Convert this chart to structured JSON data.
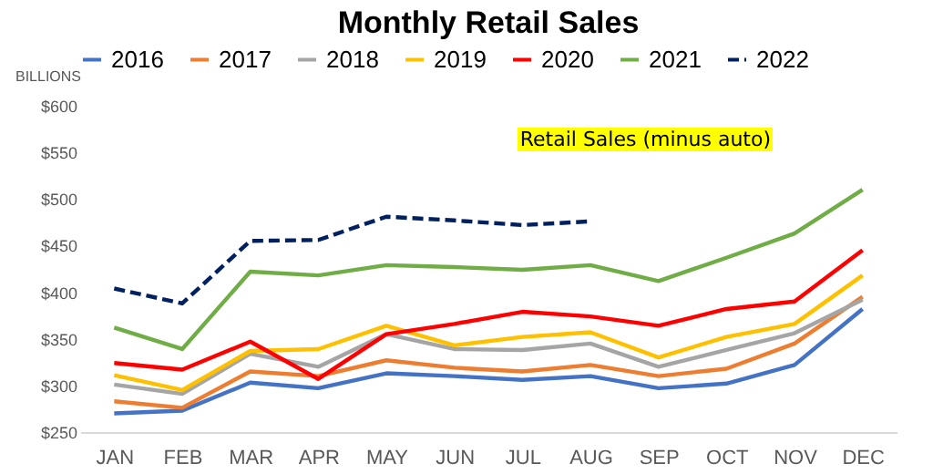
{
  "chart_data": {
    "type": "line",
    "title": "Monthly Retail Sales",
    "ylabel": "BILLIONS",
    "annotations": [
      "Retail Sales (minus auto)"
    ],
    "categories": [
      "JAN",
      "FEB",
      "MAR",
      "APR",
      "MAY",
      "JUN",
      "JUL",
      "AUG",
      "SEP",
      "OCT",
      "NOV",
      "DEC"
    ],
    "ylim": [
      250,
      600
    ],
    "yticks": [
      {
        "value": 250,
        "label": "$250"
      },
      {
        "value": 300,
        "label": "$300"
      },
      {
        "value": 350,
        "label": "$350"
      },
      {
        "value": 400,
        "label": "$400"
      },
      {
        "value": 450,
        "label": "$450"
      },
      {
        "value": 500,
        "label": "$500"
      },
      {
        "value": 550,
        "label": "$550"
      },
      {
        "value": 600,
        "label": "$600"
      }
    ],
    "grid": false,
    "legend": "top",
    "marker": "none",
    "series": [
      {
        "name": "2016",
        "color": "#4472c4",
        "values": [
          270,
          273,
          303,
          297,
          313,
          310,
          306,
          310,
          297,
          302,
          322,
          382
        ]
      },
      {
        "name": "2017",
        "color": "#ed7d31",
        "values": [
          283,
          276,
          315,
          310,
          327,
          319,
          315,
          322,
          310,
          318,
          345,
          395
        ]
      },
      {
        "name": "2018",
        "color": "#a5a5a5",
        "values": [
          301,
          291,
          334,
          320,
          355,
          339,
          338,
          345,
          320,
          338,
          356,
          392
        ]
      },
      {
        "name": "2019",
        "color": "#ffc000",
        "values": [
          311,
          295,
          337,
          339,
          364,
          343,
          352,
          357,
          330,
          352,
          366,
          418
        ]
      },
      {
        "name": "2020",
        "color": "#ff0000",
        "values": [
          324,
          317,
          347,
          307,
          355,
          366,
          379,
          374,
          364,
          382,
          390,
          445
        ]
      },
      {
        "name": "2021",
        "color": "#70ad47",
        "values": [
          362,
          339,
          422,
          418,
          429,
          427,
          424,
          429,
          412,
          437,
          463,
          510
        ]
      },
      {
        "name": "2022",
        "color": "#002060",
        "line_style": "dashed",
        "values": [
          404,
          388,
          455,
          456,
          481,
          477,
          472,
          476,
          null,
          null,
          null,
          null
        ]
      }
    ]
  }
}
